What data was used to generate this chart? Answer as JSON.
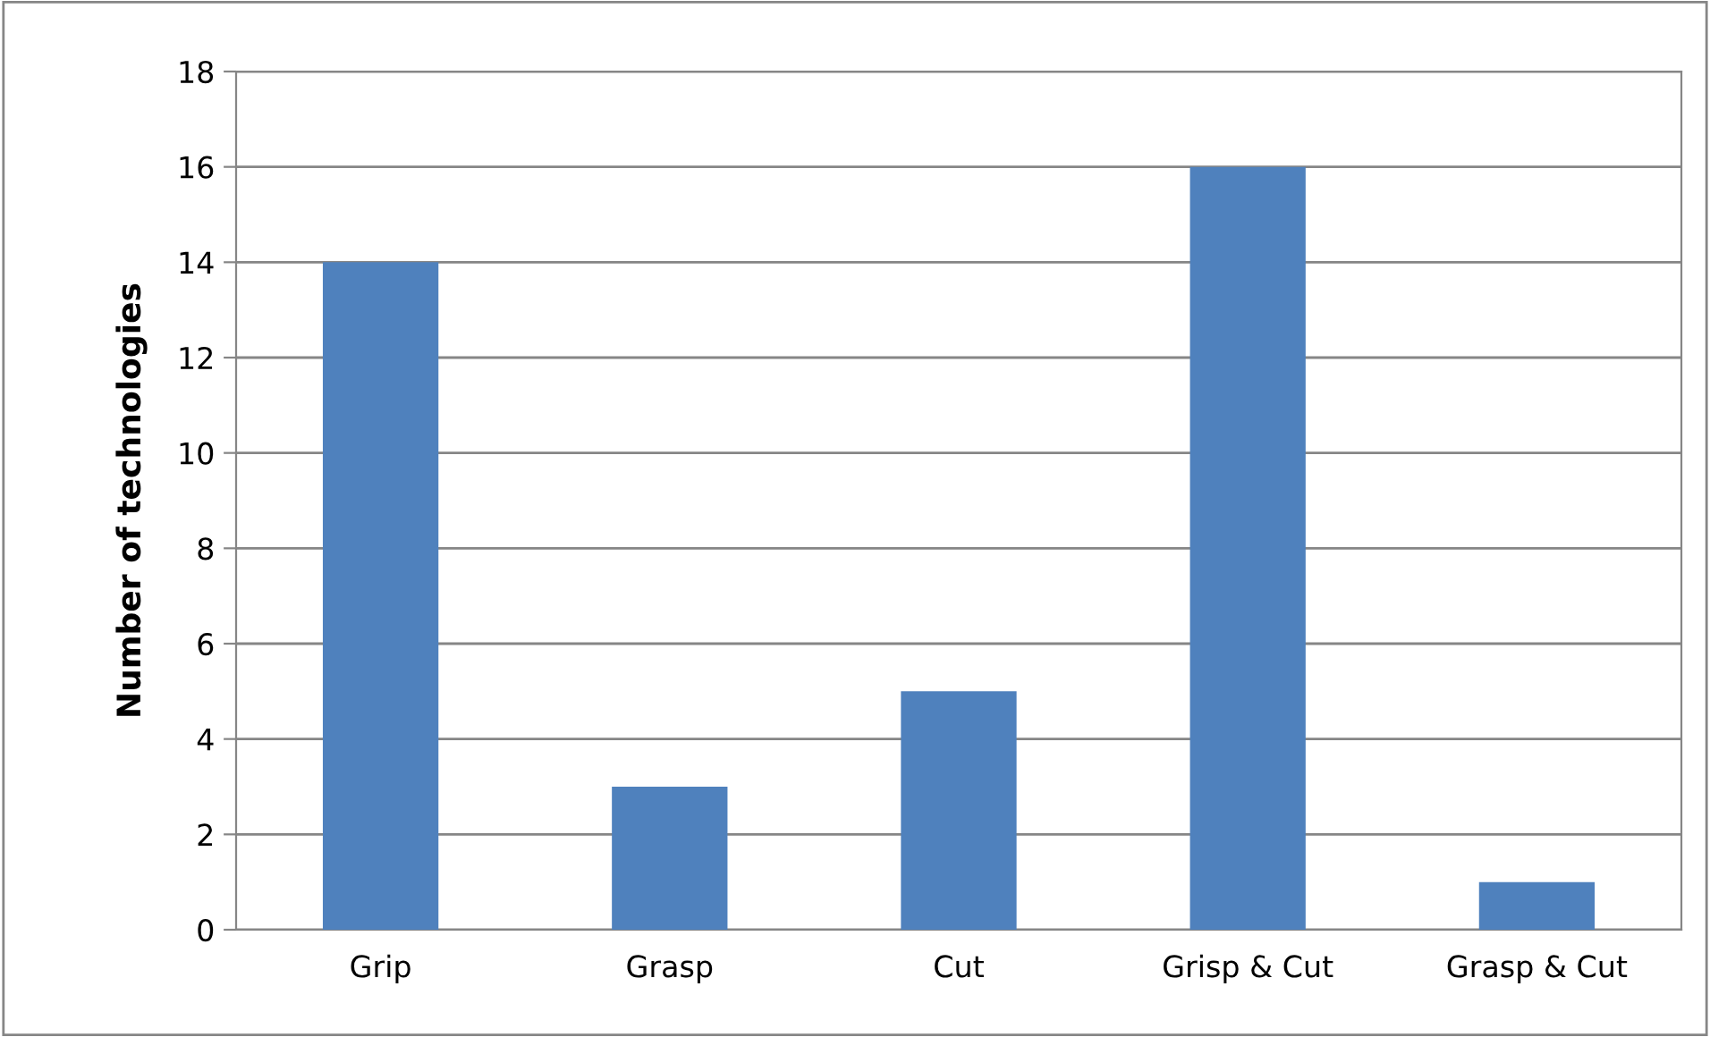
{
  "chart_data": {
    "type": "bar",
    "ylabel": "Number of technologies",
    "categories": [
      "Grip",
      "Grasp",
      "Cut",
      "Grisp & Cut",
      "Grasp & Cut"
    ],
    "values": [
      14,
      3,
      5,
      16,
      1
    ],
    "color": "#4f81bd",
    "ylim": [
      0,
      18
    ],
    "yticks": [
      0,
      2,
      4,
      6,
      8,
      10,
      12,
      14,
      16,
      18
    ],
    "grid": "y",
    "legend": false
  }
}
